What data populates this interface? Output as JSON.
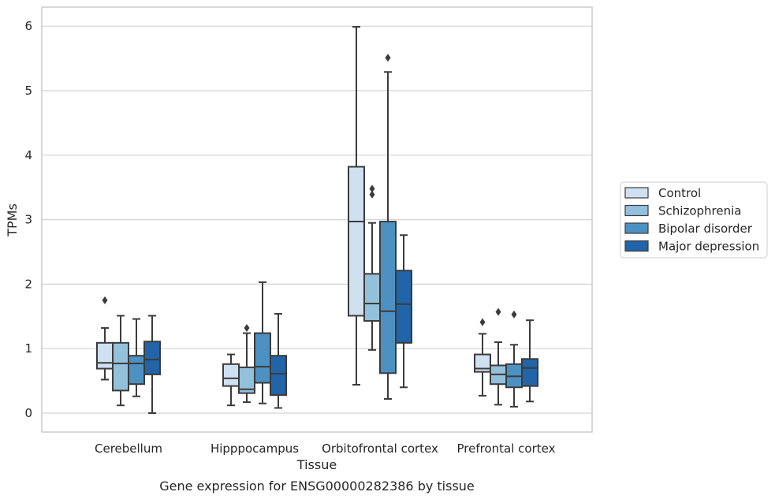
{
  "chart_data": {
    "type": "box",
    "title": "",
    "caption": "Gene expression for ENSG00000282386 by tissue",
    "xlabel": "Tissue",
    "ylabel": "TPMs",
    "ylim": [
      -0.3,
      6.3
    ],
    "yticks": [
      0,
      1,
      2,
      3,
      4,
      5,
      6
    ],
    "grid": "horizontal",
    "legend_position": "right",
    "categories": [
      "Cerebellum",
      "Hipppocampus",
      "Orbitofrontal cortex",
      "Prefrontal cortex"
    ],
    "series": [
      {
        "name": "Control",
        "color": "#cfe0f0",
        "boxes": [
          {
            "whisker_low": 0.52,
            "q1": 0.69,
            "median": 0.78,
            "q3": 1.09,
            "whisker_high": 1.32,
            "outliers": [
              1.75
            ]
          },
          {
            "whisker_low": 0.12,
            "q1": 0.42,
            "median": 0.54,
            "q3": 0.76,
            "whisker_high": 0.91,
            "outliers": []
          },
          {
            "whisker_low": 0.44,
            "q1": 1.51,
            "median": 2.97,
            "q3": 3.82,
            "whisker_high": 5.99,
            "outliers": []
          },
          {
            "whisker_low": 0.27,
            "q1": 0.64,
            "median": 0.69,
            "q3": 0.91,
            "whisker_high": 1.23,
            "outliers": [
              1.41
            ]
          }
        ]
      },
      {
        "name": "Schizophrenia",
        "color": "#93c0db",
        "boxes": [
          {
            "whisker_low": 0.12,
            "q1": 0.35,
            "median": 0.77,
            "q3": 1.09,
            "whisker_high": 1.51,
            "outliers": []
          },
          {
            "whisker_low": 0.17,
            "q1": 0.31,
            "median": 0.37,
            "q3": 0.71,
            "whisker_high": 1.24,
            "outliers": [
              1.32
            ]
          },
          {
            "whisker_low": 0.98,
            "q1": 1.43,
            "median": 1.7,
            "q3": 2.16,
            "whisker_high": 2.95,
            "outliers": [
              3.39,
              3.48
            ]
          },
          {
            "whisker_low": 0.13,
            "q1": 0.45,
            "median": 0.6,
            "q3": 0.74,
            "whisker_high": 1.1,
            "outliers": [
              1.57
            ]
          }
        ]
      },
      {
        "name": "Bipolar disorder",
        "color": "#4d91c2",
        "boxes": [
          {
            "whisker_low": 0.26,
            "q1": 0.45,
            "median": 0.77,
            "q3": 0.89,
            "whisker_high": 1.46,
            "outliers": []
          },
          {
            "whisker_low": 0.15,
            "q1": 0.47,
            "median": 0.72,
            "q3": 1.24,
            "whisker_high": 2.03,
            "outliers": []
          },
          {
            "whisker_low": 0.22,
            "q1": 0.62,
            "median": 1.58,
            "q3": 2.97,
            "whisker_high": 5.29,
            "outliers": [
              5.51
            ]
          },
          {
            "whisker_low": 0.1,
            "q1": 0.4,
            "median": 0.57,
            "q3": 0.76,
            "whisker_high": 1.06,
            "outliers": [
              1.53
            ]
          }
        ]
      },
      {
        "name": "Major depression",
        "color": "#2264a8",
        "boxes": [
          {
            "whisker_low": 0.0,
            "q1": 0.6,
            "median": 0.83,
            "q3": 1.11,
            "whisker_high": 1.51,
            "outliers": []
          },
          {
            "whisker_low": 0.08,
            "q1": 0.28,
            "median": 0.61,
            "q3": 0.89,
            "whisker_high": 1.54,
            "outliers": []
          },
          {
            "whisker_low": 0.4,
            "q1": 1.09,
            "median": 1.69,
            "q3": 2.21,
            "whisker_high": 2.76,
            "outliers": []
          },
          {
            "whisker_low": 0.18,
            "q1": 0.42,
            "median": 0.7,
            "q3": 0.84,
            "whisker_high": 1.44,
            "outliers": []
          }
        ]
      }
    ]
  }
}
